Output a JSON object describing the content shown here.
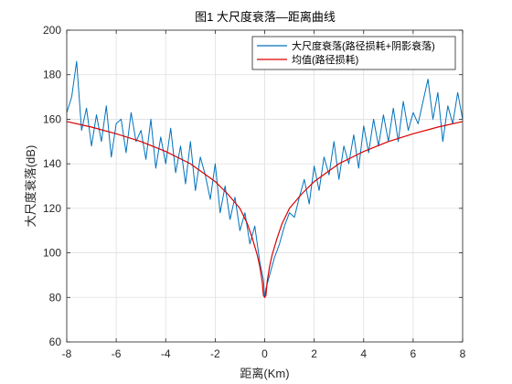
{
  "chart_data": {
    "type": "line",
    "title": "图1  大尺度衰落—距离曲线",
    "xlabel": "距离(Km)",
    "ylabel": "大尺度衰落(dB)",
    "xlim": [
      -8,
      8
    ],
    "ylim": [
      60,
      200
    ],
    "xticks": [
      -8,
      -6,
      -4,
      -2,
      0,
      2,
      4,
      6,
      8
    ],
    "yticks": [
      60,
      80,
      100,
      120,
      140,
      160,
      180,
      200
    ],
    "grid": true,
    "legend_position": "top-right",
    "series": [
      {
        "name": "大尺度衰落(路径损耗+阴影衰落)",
        "color": "#0072BD",
        "x": [
          -8.0,
          -7.8,
          -7.6,
          -7.4,
          -7.2,
          -7.0,
          -6.8,
          -6.6,
          -6.4,
          -6.2,
          -6.0,
          -5.8,
          -5.6,
          -5.4,
          -5.2,
          -5.0,
          -4.8,
          -4.6,
          -4.4,
          -4.2,
          -4.0,
          -3.8,
          -3.6,
          -3.4,
          -3.2,
          -3.0,
          -2.8,
          -2.6,
          -2.4,
          -2.2,
          -2.0,
          -1.8,
          -1.6,
          -1.4,
          -1.2,
          -1.0,
          -0.8,
          -0.6,
          -0.4,
          -0.2,
          -0.05,
          0.0,
          0.05,
          0.2,
          0.4,
          0.6,
          0.8,
          1.0,
          1.2,
          1.4,
          1.6,
          1.8,
          2.0,
          2.2,
          2.4,
          2.6,
          2.8,
          3.0,
          3.2,
          3.4,
          3.6,
          3.8,
          4.0,
          4.2,
          4.4,
          4.6,
          4.8,
          5.0,
          5.2,
          5.4,
          5.6,
          5.8,
          6.0,
          6.2,
          6.4,
          6.6,
          6.8,
          7.0,
          7.2,
          7.4,
          7.6,
          7.8,
          8.0
        ],
        "y": [
          163,
          170,
          186,
          155,
          165,
          148,
          162,
          150,
          166,
          143,
          158,
          160,
          145,
          163,
          150,
          155,
          142,
          160,
          138,
          152,
          140,
          156,
          136,
          148,
          131,
          150,
          128,
          143,
          135,
          124,
          140,
          118,
          130,
          115,
          125,
          110,
          118,
          104,
          112,
          96,
          88,
          80,
          84,
          90,
          98,
          104,
          112,
          118,
          116,
          125,
          133,
          122,
          139,
          128,
          143,
          135,
          150,
          133,
          148,
          140,
          153,
          138,
          157,
          145,
          160,
          148,
          162,
          150,
          165,
          150,
          168,
          155,
          163,
          158,
          168,
          178,
          160,
          172,
          150,
          166,
          158,
          172,
          160
        ]
      },
      {
        "name": "均值(路径损耗)",
        "color": "#D90000",
        "x": [
          -8.0,
          -7.0,
          -6.0,
          -5.0,
          -4.0,
          -3.0,
          -2.0,
          -1.5,
          -1.0,
          -0.7,
          -0.5,
          -0.3,
          -0.2,
          -0.1,
          -0.05,
          0.0,
          0.05,
          0.1,
          0.2,
          0.3,
          0.5,
          0.7,
          1.0,
          1.5,
          2.0,
          3.0,
          4.0,
          5.0,
          6.0,
          7.0,
          8.0
        ],
        "y": [
          159,
          156.5,
          153.5,
          150,
          145.5,
          140,
          132,
          126.5,
          120,
          113,
          106.5,
          99,
          94,
          87,
          81,
          80,
          81,
          87,
          94,
          99,
          106.5,
          113,
          120,
          126.5,
          132,
          140,
          145.5,
          150,
          153.5,
          156.5,
          159
        ]
      }
    ]
  }
}
